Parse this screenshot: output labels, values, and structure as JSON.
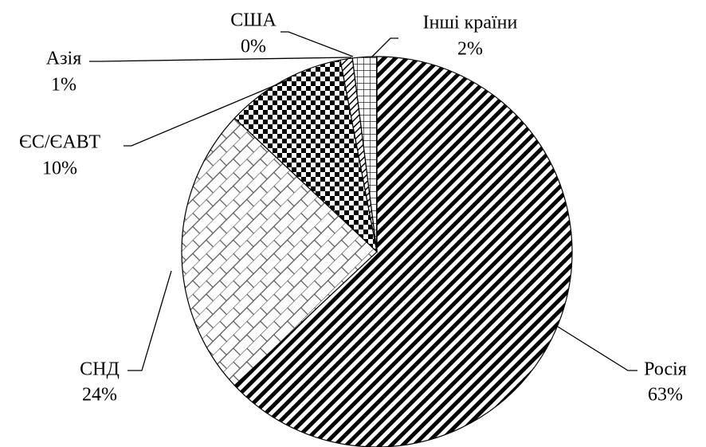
{
  "chart_data": {
    "type": "pie",
    "categories": [
      "Росія",
      "СНД",
      "ЄС/ЄАВТ",
      "Азія",
      "США",
      "Інші країни"
    ],
    "values": [
      63,
      24,
      10,
      1,
      0,
      2
    ],
    "value_labels": [
      "63%",
      "24%",
      "10%",
      "1%",
      "0%",
      "2%"
    ]
  }
}
